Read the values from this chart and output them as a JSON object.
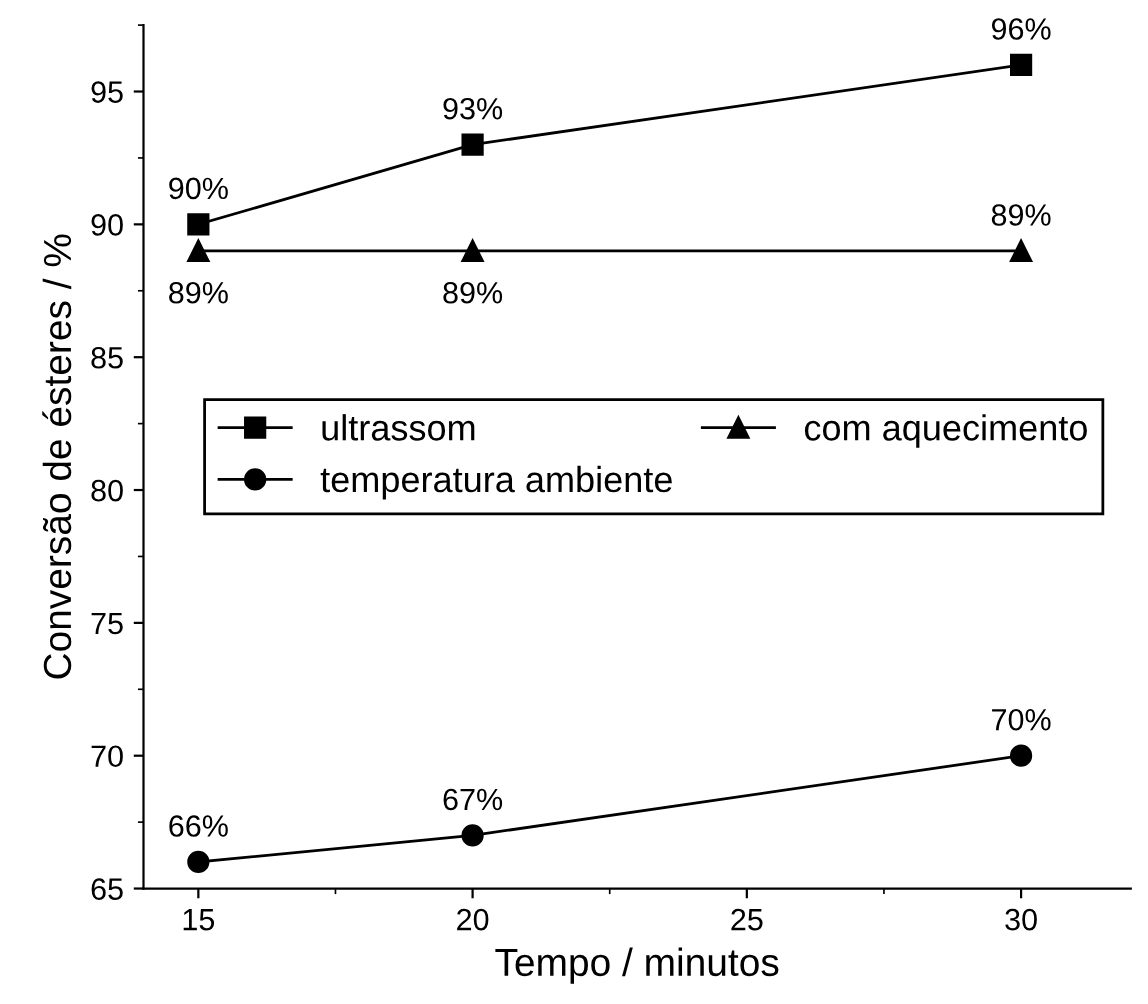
{
  "chart_data": {
    "type": "line",
    "xlabel": "Tempo / minutos",
    "ylabel": "Conversão de ésteres / %",
    "x": [
      15,
      20,
      30
    ],
    "series": [
      {
        "name": "ultrassom",
        "color": "#000000",
        "marker": "square",
        "values": [
          90,
          93,
          96
        ],
        "value_labels": [
          "90%",
          "93%",
          "96%"
        ]
      },
      {
        "name": "temperatura ambiente",
        "color": "#000000",
        "marker": "circle",
        "values": [
          66,
          67,
          70
        ],
        "value_labels": [
          "66%",
          "67%",
          "70%"
        ]
      },
      {
        "name": "com aquecimento",
        "color": "#000000",
        "marker": "triangle",
        "values": [
          89,
          89,
          89
        ],
        "value_labels": [
          "89%",
          "89%",
          "89%"
        ]
      }
    ],
    "xlim": [
      14,
      32
    ],
    "ylim": [
      65,
      97.5
    ],
    "xticks": [
      15,
      20,
      25,
      30
    ],
    "yticks": [
      65,
      70,
      75,
      80,
      85,
      90,
      95
    ],
    "grid": false,
    "legend": "center right",
    "line_style": "solid"
  }
}
